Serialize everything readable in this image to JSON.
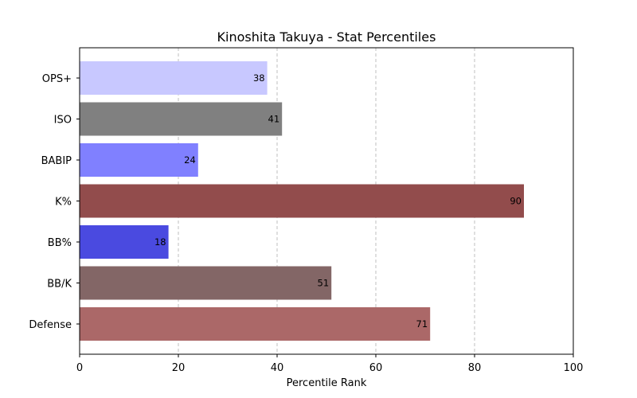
{
  "chart_data": {
    "type": "bar",
    "orientation": "horizontal",
    "title": "Kinoshita Takuya - Stat Percentiles",
    "xlabel": "Percentile Rank",
    "ylabel": "",
    "xlim": [
      0,
      100
    ],
    "xticks": [
      "0",
      "20",
      "40",
      "60",
      "80",
      "100"
    ],
    "grid": "x-dashed",
    "categories": [
      "OPS+",
      "ISO",
      "BABIP",
      "K%",
      "BB%",
      "BB/K",
      "Defense"
    ],
    "values": [
      38,
      41,
      24,
      90,
      18,
      51,
      71
    ],
    "colors": [
      "#c8c8ff",
      "#808080",
      "#8080ff",
      "#924c4c",
      "#4a4ae0",
      "#836666",
      "#ab6868"
    ]
  }
}
